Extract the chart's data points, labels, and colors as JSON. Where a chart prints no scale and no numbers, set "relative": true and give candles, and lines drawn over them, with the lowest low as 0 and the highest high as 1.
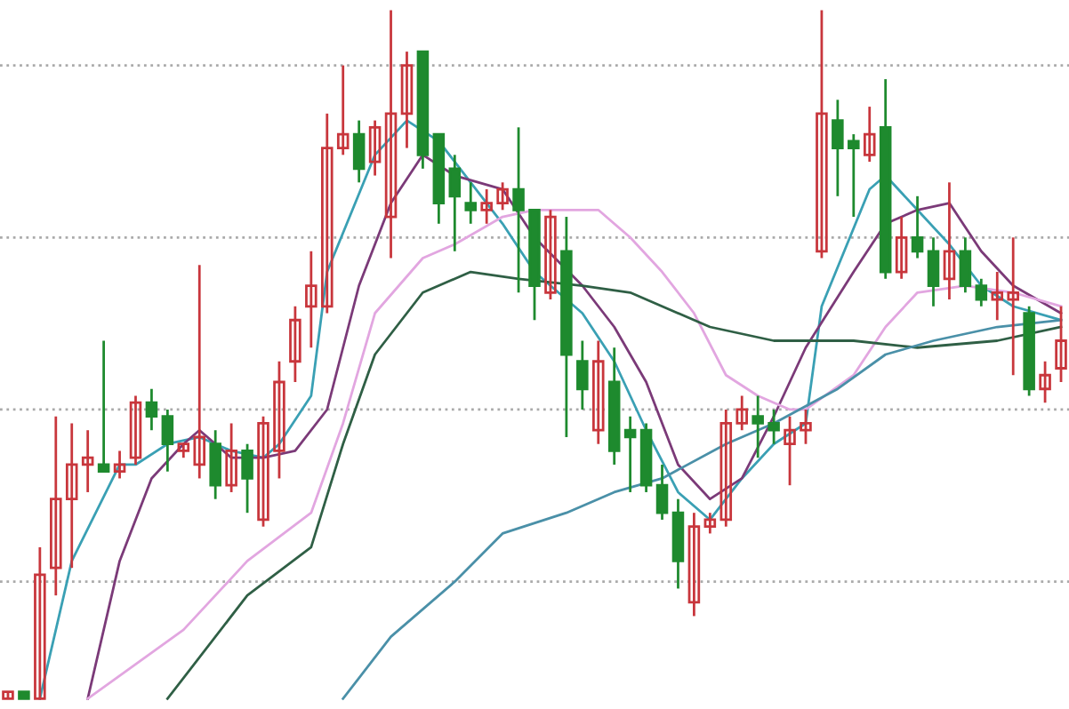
{
  "chart_data": {
    "type": "candlestick",
    "relative": true,
    "categories": [
      null,
      null,
      null,
      null,
      null,
      null,
      null,
      null,
      null,
      null,
      null,
      null,
      null,
      null,
      null,
      null,
      null,
      null,
      null,
      null,
      null,
      null,
      null,
      null,
      null,
      null,
      null,
      null,
      null,
      null,
      null,
      null,
      null,
      null,
      null,
      null,
      null,
      null,
      null,
      null,
      null,
      null,
      null,
      null,
      null,
      null,
      null,
      null,
      null,
      null,
      null,
      null,
      null,
      null,
      null,
      null,
      null,
      null,
      null,
      null,
      null,
      null,
      null,
      null,
      null,
      null,
      null
    ],
    "ohlc": [
      [
        0.0,
        0.01,
        0,
        0.01
      ],
      [
        0.01,
        0.01,
        0,
        0.0
      ],
      [
        0,
        0.22,
        0,
        0.18
      ],
      [
        0.19,
        0.41,
        0.15,
        0.29
      ],
      [
        0.29,
        0.4,
        0.19,
        0.34
      ],
      [
        0.34,
        0.39,
        0.3,
        0.35
      ],
      [
        0.34,
        0.52,
        0.33,
        0.33
      ],
      [
        0.33,
        0.36,
        0.32,
        0.34
      ],
      [
        0.35,
        0.44,
        0.34,
        0.43
      ],
      [
        0.43,
        0.45,
        0.39,
        0.41
      ],
      [
        0.41,
        0.42,
        0.33,
        0.37
      ],
      [
        0.36,
        0.37,
        0.35,
        0.37
      ],
      [
        0.34,
        0.63,
        0.32,
        0.38
      ],
      [
        0.37,
        0.39,
        0.29,
        0.31
      ],
      [
        0.31,
        0.4,
        0.3,
        0.36
      ],
      [
        0.36,
        0.37,
        0.27,
        0.32
      ],
      [
        0.26,
        0.41,
        0.25,
        0.4
      ],
      [
        0.36,
        0.49,
        0.32,
        0.46
      ],
      [
        0.49,
        0.57,
        0.46,
        0.55
      ],
      [
        0.57,
        0.65,
        0.51,
        0.6
      ],
      [
        0.57,
        0.85,
        0.56,
        0.8
      ],
      [
        0.8,
        0.92,
        0.79,
        0.82
      ],
      [
        0.82,
        0.84,
        0.75,
        0.77
      ],
      [
        0.78,
        0.84,
        0.76,
        0.83
      ],
      [
        0.7,
        1,
        0.64,
        0.85
      ],
      [
        0.85,
        0.94,
        0.8,
        0.92
      ],
      [
        0.94,
        0.94,
        0.77,
        0.79
      ],
      [
        0.82,
        0.82,
        0.69,
        0.72
      ],
      [
        0.77,
        0.79,
        0.65,
        0.73
      ],
      [
        0.72,
        0.75,
        0.69,
        0.71
      ],
      [
        0.71,
        0.74,
        0.69,
        0.72
      ],
      [
        0.72,
        0.75,
        0.71,
        0.74
      ],
      [
        0.74,
        0.83,
        0.59,
        0.71
      ],
      [
        0.71,
        0.71,
        0.55,
        0.6
      ],
      [
        0.59,
        0.71,
        0.58,
        0.7
      ],
      [
        0.65,
        0.7,
        0.38,
        0.5
      ],
      [
        0.49,
        0.52,
        0.42,
        0.45
      ],
      [
        0.39,
        0.52,
        0.37,
        0.49
      ],
      [
        0.46,
        0.51,
        0.34,
        0.36
      ],
      [
        0.39,
        0.41,
        0.3,
        0.38
      ],
      [
        0.39,
        0.4,
        0.3,
        0.31
      ],
      [
        0.31,
        0.34,
        0.26,
        0.27
      ],
      [
        0.27,
        0.29,
        0.16,
        0.2
      ],
      [
        0.14,
        0.27,
        0.12,
        0.25
      ],
      [
        0.25,
        0.27,
        0.24,
        0.26
      ],
      [
        0.26,
        0.42,
        0.25,
        0.4
      ],
      [
        0.4,
        0.44,
        0.39,
        0.42
      ],
      [
        0.41,
        0.44,
        0.35,
        0.4
      ],
      [
        0.4,
        0.42,
        0.37,
        0.39
      ],
      [
        0.37,
        0.41,
        0.31,
        0.39
      ],
      [
        0.39,
        0.42,
        0.37,
        0.4
      ],
      [
        0.65,
        1,
        0.64,
        0.85
      ],
      [
        0.84,
        0.87,
        0.73,
        0.8
      ],
      [
        0.81,
        0.82,
        0.7,
        0.8
      ],
      [
        0.79,
        0.86,
        0.78,
        0.82
      ],
      [
        0.83,
        0.9,
        0.61,
        0.62
      ],
      [
        0.62,
        0.7,
        0.61,
        0.67
      ],
      [
        0.67,
        0.73,
        0.64,
        0.65
      ],
      [
        0.65,
        0.67,
        0.57,
        0.6
      ],
      [
        0.61,
        0.75,
        0.58,
        0.65
      ],
      [
        0.65,
        0.67,
        0.59,
        0.6
      ],
      [
        0.6,
        0.61,
        0.57,
        0.58
      ],
      [
        0.58,
        0.62,
        0.55,
        0.59
      ],
      [
        0.58,
        0.67,
        0.47,
        0.59
      ],
      [
        0.56,
        0.57,
        0.44,
        0.45
      ],
      [
        0.45,
        0.49,
        0.43,
        0.47
      ],
      [
        0.48,
        0.57,
        0.46,
        0.52
      ]
    ],
    "colors": [
      "#c8363c",
      "#1e8a2e",
      "#c8363c",
      "#c8363c",
      "#c8363c",
      "#c8363c",
      "#1e8a2e",
      "#c8363c",
      "#c8363c",
      "#1e8a2e",
      "#1e8a2e",
      "#c8363c",
      "#c8363c",
      "#1e8a2e",
      "#c8363c",
      "#1e8a2e",
      "#c8363c",
      "#c8363c",
      "#c8363c",
      "#c8363c",
      "#c8363c",
      "#c8363c",
      "#1e8a2e",
      "#c8363c",
      "#c8363c",
      "#c8363c",
      "#1e8a2e",
      "#1e8a2e",
      "#1e8a2e",
      "#1e8a2e",
      "#c8363c",
      "#c8363c",
      "#1e8a2e",
      "#1e8a2e",
      "#c8363c",
      "#1e8a2e",
      "#1e8a2e",
      "#c8363c",
      "#1e8a2e",
      "#1e8a2e",
      "#1e8a2e",
      "#1e8a2e",
      "#1e8a2e",
      "#c8363c",
      "#c8363c",
      "#c8363c",
      "#c8363c",
      "#1e8a2e",
      "#1e8a2e",
      "#c8363c",
      "#c8363c",
      "#c8363c",
      "#1e8a2e",
      "#1e8a2e",
      "#c8363c",
      "#1e8a2e",
      "#c8363c",
      "#1e8a2e",
      "#1e8a2e",
      "#c8363c",
      "#1e8a2e",
      "#1e8a2e",
      "#c8363c",
      "#c8363c",
      "#1e8a2e",
      "#c8363c",
      "#c8363c"
    ],
    "series": [
      {
        "type": "line",
        "color": "#3aa0b4",
        "values": [
          null,
          null,
          0.0,
          null,
          0.2,
          null,
          null,
          0.34,
          0.34,
          null,
          0.37,
          null,
          0.38,
          null,
          0.36,
          null,
          0.35,
          0.37,
          null,
          0.44,
          0.62,
          null,
          null,
          0.79,
          null,
          0.84,
          null,
          0.81,
          null,
          0.75,
          null,
          0.69,
          null,
          0.62,
          null,
          null,
          0.56,
          null,
          0.49,
          null,
          0.39,
          null,
          0.3,
          null,
          0.26,
          null,
          0.32,
          null,
          0.37,
          null,
          0.4,
          0.57,
          null,
          null,
          0.74,
          0.76,
          null,
          0.71,
          null,
          0.66,
          null,
          0.6,
          null,
          0.57,
          null,
          null,
          0.55
        ]
      },
      {
        "type": "line",
        "color": "#7b3a78",
        "values": [
          null,
          null,
          null,
          null,
          null,
          0.0,
          null,
          0.2,
          null,
          0.32,
          null,
          0.37,
          0.39,
          null,
          0.35,
          null,
          0.35,
          null,
          0.36,
          null,
          0.42,
          null,
          0.6,
          null,
          0.72,
          null,
          0.79,
          null,
          0.76,
          null,
          null,
          0.74,
          null,
          0.67,
          null,
          null,
          0.6,
          null,
          0.54,
          null,
          0.46,
          null,
          0.34,
          null,
          0.29,
          null,
          0.32,
          null,
          0.41,
          null,
          0.51,
          null,
          null,
          0.62,
          null,
          0.69,
          null,
          0.71,
          null,
          0.72,
          null,
          0.65,
          null,
          0.6,
          null,
          null,
          0.56
        ]
      },
      {
        "type": "line",
        "color": "#e2a6e0",
        "values": [
          null,
          null,
          null,
          null,
          null,
          0.0,
          null,
          null,
          null,
          null,
          null,
          0.1,
          null,
          null,
          null,
          0.2,
          null,
          null,
          null,
          0.27,
          null,
          0.4,
          null,
          0.56,
          null,
          null,
          0.64,
          null,
          0.66,
          null,
          null,
          0.7,
          null,
          0.71,
          null,
          0.71,
          null,
          0.71,
          null,
          0.67,
          null,
          0.62,
          null,
          0.56,
          null,
          0.47,
          null,
          0.44,
          null,
          0.42,
          0.42,
          null,
          null,
          0.47,
          null,
          0.54,
          null,
          0.59,
          null,
          null,
          0.6,
          null,
          null,
          0.59,
          null,
          null,
          0.57
        ]
      },
      {
        "type": "line",
        "color": "#2f5f45",
        "values": [
          null,
          null,
          null,
          null,
          null,
          null,
          null,
          null,
          null,
          null,
          0.0,
          null,
          null,
          null,
          null,
          0.15,
          null,
          null,
          null,
          0.22,
          null,
          0.37,
          null,
          0.5,
          null,
          null,
          0.59,
          null,
          null,
          0.62,
          null,
          null,
          0.61,
          null,
          null,
          null,
          0.6,
          null,
          null,
          0.59,
          null,
          null,
          null,
          null,
          0.54,
          null,
          null,
          null,
          0.52,
          null,
          null,
          null,
          null,
          0.52,
          null,
          null,
          null,
          0.51,
          null,
          null,
          null,
          null,
          0.52,
          null,
          null,
          null,
          0.54
        ]
      },
      {
        "type": "line",
        "color": "#4a90a8",
        "values": [
          null,
          null,
          null,
          null,
          null,
          null,
          null,
          null,
          null,
          null,
          null,
          null,
          null,
          null,
          null,
          null,
          null,
          null,
          null,
          null,
          null,
          0.0,
          null,
          null,
          0.09,
          null,
          null,
          null,
          0.17,
          null,
          null,
          0.24,
          null,
          null,
          null,
          0.27,
          null,
          null,
          0.3,
          null,
          null,
          0.32,
          null,
          null,
          null,
          0.37,
          null,
          null,
          0.4,
          null,
          null,
          null,
          0.45,
          null,
          null,
          0.5,
          null,
          null,
          0.52,
          null,
          null,
          null,
          0.54,
          null,
          null,
          null,
          0.55
        ]
      }
    ],
    "ref_lines": [
      {
        "axis": "y",
        "value": 0.92,
        "color": "#aaaaaa",
        "line_style": "dotted"
      },
      {
        "axis": "y",
        "value": 0.67,
        "color": "#aaaaaa",
        "line_style": "dotted"
      },
      {
        "axis": "y",
        "value": 0.42,
        "color": "#aaaaaa",
        "line_style": "dotted"
      },
      {
        "axis": "y",
        "value": 0.17,
        "color": "#aaaaaa",
        "line_style": "dotted"
      }
    ]
  }
}
